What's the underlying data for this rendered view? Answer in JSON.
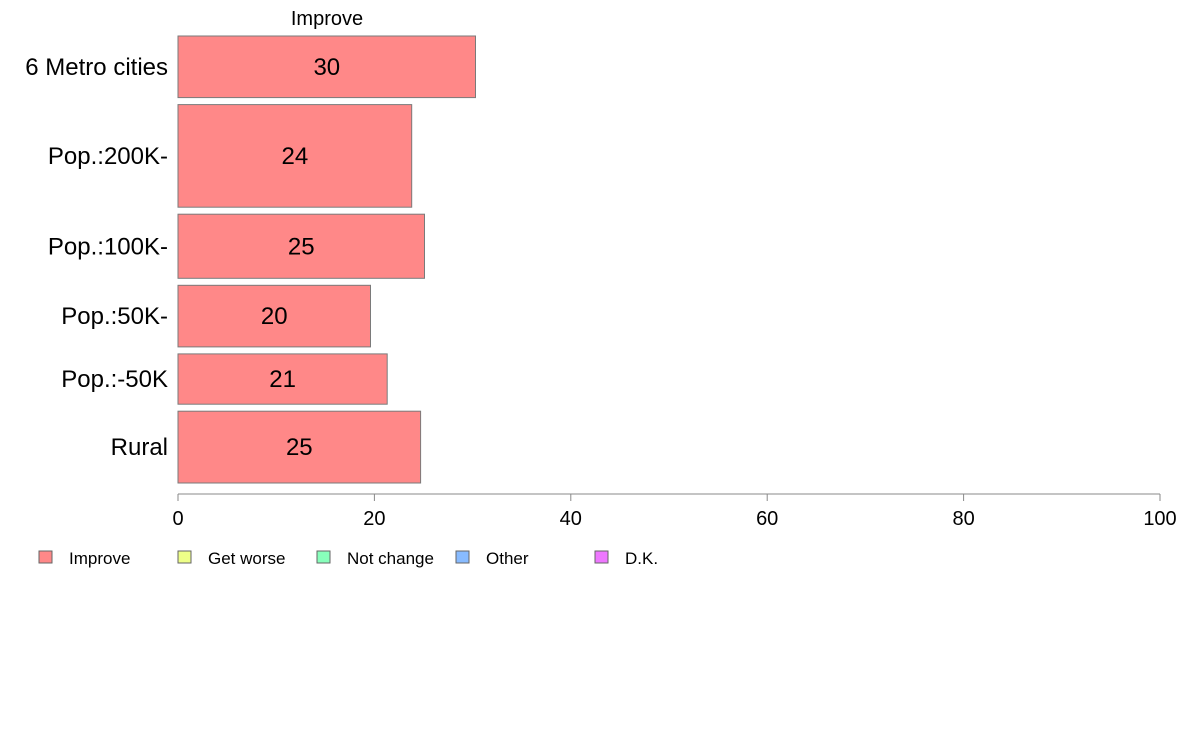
{
  "chart_data": {
    "type": "bar",
    "orientation": "horizontal",
    "series_title": "Improve",
    "categories": [
      "6 Metro cities",
      "Pop.:200K-",
      "Pop.:100K-",
      "Pop.:50K-",
      "Pop.:-50K",
      "Rural"
    ],
    "category_weights": [
      1.2,
      2.0,
      1.25,
      1.2,
      0.98,
      1.4
    ],
    "series": [
      {
        "name": "Improve",
        "values": [
          30.3,
          23.8,
          25.1,
          19.6,
          21.3,
          24.7
        ],
        "value_labels": [
          "30",
          "24",
          "25",
          "20",
          "21",
          "25"
        ],
        "color": "#ff8888"
      }
    ],
    "xlim": [
      0,
      100
    ],
    "xticks": [
      "0",
      "20",
      "40",
      "60",
      "80",
      "100"
    ],
    "grid": false,
    "legend": {
      "placement": "bottom-left",
      "items": [
        {
          "label": "Improve",
          "color": "#ff8888"
        },
        {
          "label": "Get worse",
          "color": "#eeff88"
        },
        {
          "label": "Not change",
          "color": "#88ffbb"
        },
        {
          "label": "Other",
          "color": "#88bbff"
        },
        {
          "label": "D.K.",
          "color": "#ee77ff"
        }
      ]
    }
  }
}
